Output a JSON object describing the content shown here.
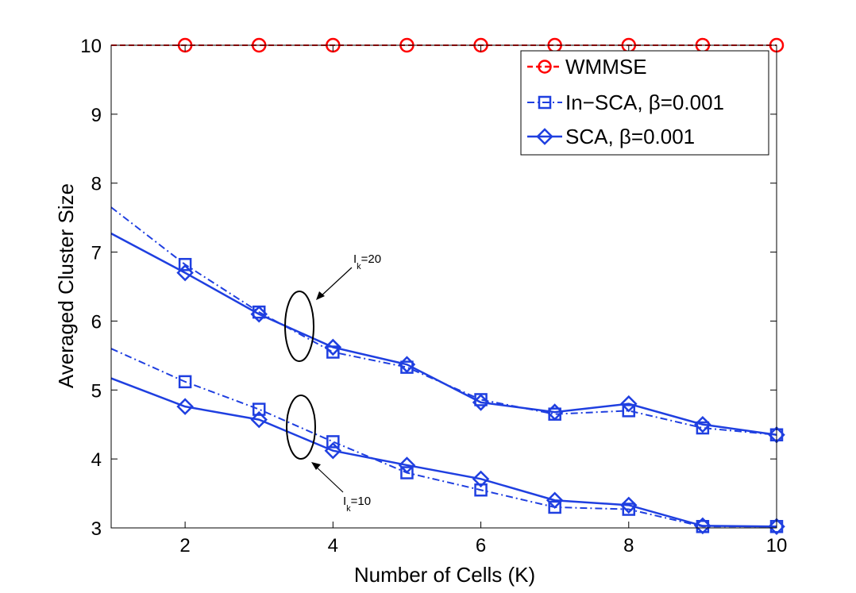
{
  "chart_data": {
    "type": "line",
    "xlabel": "Number of Cells (K)",
    "ylabel": "Averaged Cluster Size",
    "xlim": [
      1,
      10
    ],
    "ylim": [
      3,
      10
    ],
    "xticks": [
      "2",
      "4",
      "6",
      "8",
      "10"
    ],
    "yticks": [
      "3",
      "4",
      "5",
      "6",
      "7",
      "8",
      "9",
      "10"
    ],
    "grid": false,
    "legend_position": "top-right",
    "legend": {
      "wmmse": "WMMSE",
      "insca_prefix": "In−SCA, ",
      "sca_prefix": "SCA, ",
      "beta_symbol": "β",
      "beta_value": "=0.001"
    },
    "annotations": {
      "ik20_main": "I",
      "ik20_sub": "k",
      "ik20_rest": "=20",
      "ik10_main": "I",
      "ik10_sub": "k",
      "ik10_rest": "=10"
    },
    "colors": {
      "wmmse": "#ff0000",
      "sca": "#1f3fe0"
    },
    "series": [
      {
        "name": "WMMSE",
        "marker": "circle",
        "style": "dashed",
        "x": [
          1,
          2,
          3,
          4,
          5,
          6,
          7,
          8,
          9,
          10
        ],
        "y": [
          10,
          10,
          10,
          10,
          10,
          10,
          10,
          10,
          10,
          10
        ]
      },
      {
        "name": "In−SCA, β=0.001",
        "group": "Ik=20",
        "marker": "square",
        "style": "dashdot",
        "x": [
          1,
          2,
          3,
          4,
          5,
          6,
          7,
          8,
          9,
          10
        ],
        "y": [
          7.65,
          6.82,
          6.13,
          5.55,
          5.33,
          4.86,
          4.65,
          4.7,
          4.45,
          4.35
        ]
      },
      {
        "name": "SCA, β=0.001",
        "group": "Ik=20",
        "marker": "diamond",
        "style": "solid",
        "x": [
          1,
          2,
          3,
          4,
          5,
          6,
          7,
          8,
          9,
          10
        ],
        "y": [
          7.27,
          6.7,
          6.1,
          5.62,
          5.37,
          4.82,
          4.68,
          4.8,
          4.5,
          4.35
        ]
      },
      {
        "name": "In−SCA, β=0.001",
        "group": "Ik=10",
        "marker": "square",
        "style": "dashdot",
        "x": [
          1,
          2,
          3,
          4,
          5,
          6,
          7,
          8,
          9,
          10
        ],
        "y": [
          5.6,
          5.12,
          4.72,
          4.25,
          3.8,
          3.55,
          3.3,
          3.27,
          3.02,
          3.02
        ]
      },
      {
        "name": "SCA, β=0.001",
        "group": "Ik=10",
        "marker": "diamond",
        "style": "solid",
        "x": [
          1,
          2,
          3,
          4,
          5,
          6,
          7,
          8,
          9,
          10
        ],
        "y": [
          5.17,
          4.76,
          4.57,
          4.12,
          3.91,
          3.71,
          3.4,
          3.33,
          3.03,
          3.02
        ]
      }
    ]
  }
}
